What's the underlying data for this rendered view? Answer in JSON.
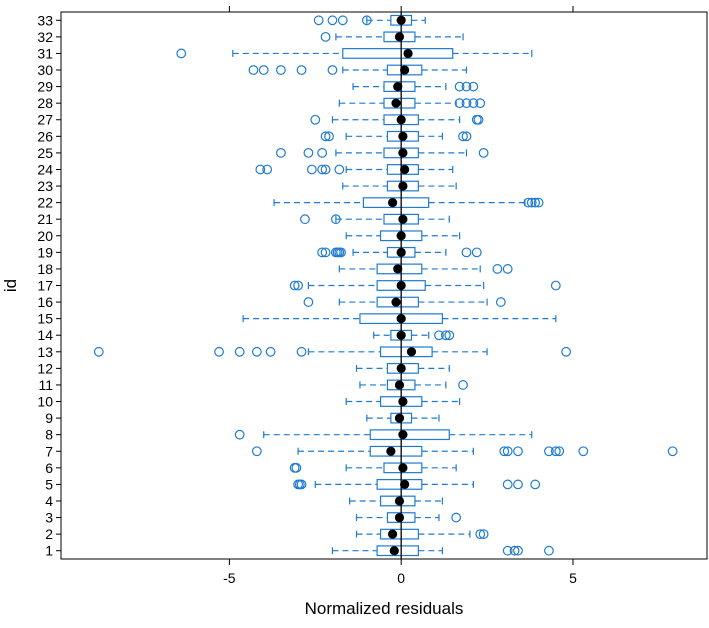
{
  "chart_data": {
    "type": "boxplot",
    "title": "",
    "xlabel": "Normalized residuals",
    "ylabel": "id",
    "xlim": [
      -9.9,
      8.9
    ],
    "xticks": [
      -5,
      0,
      5
    ],
    "xtick_labels": [
      "-5",
      "0",
      "5"
    ],
    "reference_line_x": 0,
    "colors": {
      "box": "#1f7bd1",
      "median": "#000000",
      "ref_line": "#000000"
    },
    "series": [
      {
        "id": "1",
        "box": [
          -0.7,
          0.5
        ],
        "whiskers": [
          -2.0,
          1.2
        ],
        "median": -0.2,
        "outliers": [
          3.1,
          3.3,
          3.4,
          4.3
        ]
      },
      {
        "id": "2",
        "box": [
          -0.6,
          0.5
        ],
        "whiskers": [
          -1.3,
          2.0
        ],
        "median": -0.25,
        "outliers": [
          2.3,
          2.4
        ]
      },
      {
        "id": "3",
        "box": [
          -0.4,
          0.4
        ],
        "whiskers": [
          -1.3,
          1.1
        ],
        "median": -0.05,
        "outliers": [
          1.6
        ]
      },
      {
        "id": "4",
        "box": [
          -0.6,
          0.4
        ],
        "whiskers": [
          -1.5,
          1.2
        ],
        "median": -0.05,
        "outliers": []
      },
      {
        "id": "5",
        "box": [
          -0.7,
          0.6
        ],
        "whiskers": [
          -2.5,
          2.1
        ],
        "median": 0.1,
        "outliers": [
          -3.0,
          -2.9,
          -2.95,
          3.1,
          3.4,
          3.9
        ]
      },
      {
        "id": "6",
        "box": [
          -0.5,
          0.6
        ],
        "whiskers": [
          -1.6,
          1.6
        ],
        "median": 0.05,
        "outliers": [
          -3.1,
          -3.05
        ]
      },
      {
        "id": "7",
        "box": [
          -0.9,
          0.6
        ],
        "whiskers": [
          -3.0,
          2.1
        ],
        "median": -0.3,
        "outliers": [
          -4.2,
          3.0,
          3.1,
          3.4,
          4.3,
          4.5,
          4.6,
          5.3,
          7.9
        ]
      },
      {
        "id": "8",
        "box": [
          -0.9,
          1.4
        ],
        "whiskers": [
          -4.0,
          3.8
        ],
        "median": 0.05,
        "outliers": [
          -4.7
        ]
      },
      {
        "id": "9",
        "box": [
          -0.3,
          0.3
        ],
        "whiskers": [
          -1.0,
          1.1
        ],
        "median": -0.05,
        "outliers": []
      },
      {
        "id": "10",
        "box": [
          -0.6,
          0.6
        ],
        "whiskers": [
          -1.6,
          1.7
        ],
        "median": 0.05,
        "outliers": []
      },
      {
        "id": "11",
        "box": [
          -0.4,
          0.4
        ],
        "whiskers": [
          -1.2,
          1.3
        ],
        "median": -0.05,
        "outliers": [
          1.8
        ]
      },
      {
        "id": "12",
        "box": [
          -0.4,
          0.5
        ],
        "whiskers": [
          -1.3,
          1.4
        ],
        "median": 0.0,
        "outliers": []
      },
      {
        "id": "13",
        "box": [
          -0.6,
          0.9
        ],
        "whiskers": [
          -2.7,
          2.5
        ],
        "median": 0.3,
        "outliers": [
          -8.8,
          -5.3,
          -4.7,
          -4.2,
          -3.8,
          -2.9,
          4.8
        ]
      },
      {
        "id": "14",
        "box": [
          -0.3,
          0.3
        ],
        "whiskers": [
          -0.8,
          0.8
        ],
        "median": 0.0,
        "outliers": [
          1.1,
          1.3,
          1.4
        ]
      },
      {
        "id": "15",
        "box": [
          -1.2,
          1.2
        ],
        "whiskers": [
          -4.6,
          4.5
        ],
        "median": 0.0,
        "outliers": []
      },
      {
        "id": "16",
        "box": [
          -0.7,
          0.5
        ],
        "whiskers": [
          -1.8,
          2.5
        ],
        "median": -0.15,
        "outliers": [
          -2.7,
          2.9
        ]
      },
      {
        "id": "17",
        "box": [
          -0.7,
          0.7
        ],
        "whiskers": [
          -2.7,
          2.4
        ],
        "median": 0.0,
        "outliers": [
          -3.1,
          -3.0,
          4.5
        ]
      },
      {
        "id": "18",
        "box": [
          -0.7,
          0.6
        ],
        "whiskers": [
          -1.8,
          2.3
        ],
        "median": -0.1,
        "outliers": [
          2.8,
          3.1
        ]
      },
      {
        "id": "19",
        "box": [
          -0.4,
          0.4
        ],
        "whiskers": [
          -1.4,
          1.3
        ],
        "median": 0.0,
        "outliers": [
          -2.3,
          -2.2,
          -1.9,
          -1.85,
          -1.8,
          -1.75,
          1.9,
          2.2
        ]
      },
      {
        "id": "20",
        "box": [
          -0.6,
          0.6
        ],
        "whiskers": [
          -1.6,
          1.7
        ],
        "median": 0.0,
        "outliers": []
      },
      {
        "id": "21",
        "box": [
          -0.5,
          0.5
        ],
        "whiskers": [
          -1.9,
          1.4
        ],
        "median": 0.05,
        "outliers": [
          -2.8,
          -1.9
        ]
      },
      {
        "id": "22",
        "box": [
          -1.1,
          0.8
        ],
        "whiskers": [
          -3.7,
          3.6
        ],
        "median": -0.25,
        "outliers": [
          3.7,
          3.8,
          3.9,
          4.0
        ]
      },
      {
        "id": "23",
        "box": [
          -0.4,
          0.5
        ],
        "whiskers": [
          -1.7,
          1.6
        ],
        "median": 0.05,
        "outliers": []
      },
      {
        "id": "24",
        "box": [
          -0.4,
          0.5
        ],
        "whiskers": [
          -1.6,
          1.5
        ],
        "median": 0.1,
        "outliers": [
          -4.1,
          -3.9,
          -2.6,
          -2.3,
          -2.2,
          -1.8
        ]
      },
      {
        "id": "25",
        "box": [
          -0.5,
          0.5
        ],
        "whiskers": [
          -1.9,
          1.9
        ],
        "median": 0.05,
        "outliers": [
          -3.5,
          -2.7,
          -2.3,
          2.4
        ]
      },
      {
        "id": "26",
        "box": [
          -0.4,
          0.5
        ],
        "whiskers": [
          -1.6,
          1.2
        ],
        "median": 0.05,
        "outliers": [
          -2.2,
          -2.1,
          1.8,
          1.9
        ]
      },
      {
        "id": "27",
        "box": [
          -0.5,
          0.5
        ],
        "whiskers": [
          -2.0,
          1.7
        ],
        "median": 0.0,
        "outliers": [
          -2.5,
          2.2,
          2.25
        ]
      },
      {
        "id": "28",
        "box": [
          -0.5,
          0.4
        ],
        "whiskers": [
          -1.8,
          1.6
        ],
        "median": -0.15,
        "outliers": [
          1.7,
          1.9,
          2.1,
          2.3
        ]
      },
      {
        "id": "29",
        "box": [
          -0.5,
          0.4
        ],
        "whiskers": [
          -1.4,
          1.3
        ],
        "median": -0.1,
        "outliers": [
          1.7,
          1.9,
          2.1
        ]
      },
      {
        "id": "30",
        "box": [
          -0.4,
          0.6
        ],
        "whiskers": [
          -1.7,
          1.9
        ],
        "median": 0.1,
        "outliers": [
          -4.3,
          -4.0,
          -3.5,
          -2.9,
          -2.0
        ]
      },
      {
        "id": "31",
        "box": [
          -1.7,
          1.5
        ],
        "whiskers": [
          -4.9,
          3.8
        ],
        "median": 0.2,
        "outliers": [
          -6.4
        ]
      },
      {
        "id": "32",
        "box": [
          -0.5,
          0.4
        ],
        "whiskers": [
          -1.9,
          1.8
        ],
        "median": -0.05,
        "outliers": [
          -2.2
        ]
      },
      {
        "id": "33",
        "box": [
          -0.3,
          0.3
        ],
        "whiskers": [
          -1.0,
          0.7
        ],
        "median": 0.0,
        "outliers": [
          -2.4,
          -2.0,
          -1.7,
          -1.0
        ]
      }
    ]
  }
}
